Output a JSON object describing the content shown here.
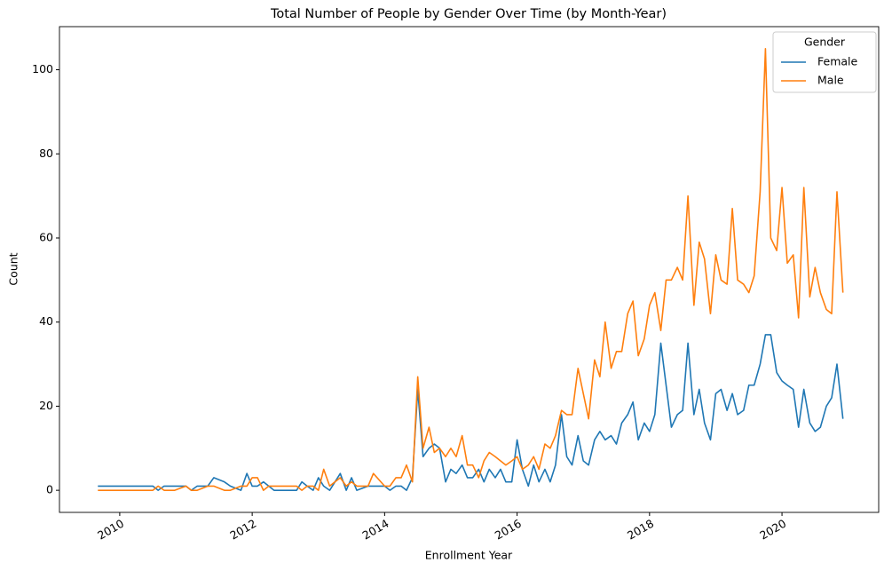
{
  "chart_data": {
    "type": "line",
    "title": "Total Number of People by Gender Over Time (by Month-Year)",
    "x_label": "Enrollment Year",
    "y_label": "Count",
    "legend_title": "Gender",
    "legend_position": "upper right",
    "x": [
      2009.67,
      2010.5,
      2010.58,
      2010.67,
      2010.83,
      2011.0,
      2011.08,
      2011.17,
      2011.33,
      2011.42,
      2011.58,
      2011.67,
      2011.83,
      2011.92,
      2012.0,
      2012.08,
      2012.17,
      2012.25,
      2012.33,
      2012.67,
      2012.75,
      2012.83,
      2012.92,
      2013.0,
      2013.08,
      2013.17,
      2013.25,
      2013.33,
      2013.42,
      2013.5,
      2013.58,
      2013.75,
      2013.83,
      2014.0,
      2014.08,
      2014.17,
      2014.25,
      2014.33,
      2014.42,
      2014.5,
      2014.58,
      2014.67,
      2014.75,
      2014.83,
      2014.92,
      2015.0,
      2015.08,
      2015.17,
      2015.25,
      2015.33,
      2015.42,
      2015.5,
      2015.58,
      2015.67,
      2015.75,
      2015.83,
      2015.92,
      2016.0,
      2016.08,
      2016.17,
      2016.25,
      2016.33,
      2016.42,
      2016.5,
      2016.58,
      2016.67,
      2016.75,
      2016.83,
      2016.92,
      2017.0,
      2017.08,
      2017.17,
      2017.25,
      2017.33,
      2017.42,
      2017.5,
      2017.58,
      2017.67,
      2017.75,
      2017.83,
      2017.92,
      2018.0,
      2018.08,
      2018.17,
      2018.25,
      2018.33,
      2018.42,
      2018.5,
      2018.58,
      2018.67,
      2018.75,
      2018.83,
      2018.92,
      2019.0,
      2019.08,
      2019.17,
      2019.25,
      2019.33,
      2019.42,
      2019.5,
      2019.58,
      2019.67,
      2019.75,
      2019.83,
      2019.92,
      2020.0,
      2020.08,
      2020.17,
      2020.25,
      2020.33,
      2020.42,
      2020.5,
      2020.58,
      2020.67,
      2020.75,
      2020.83,
      2020.92
    ],
    "series": [
      {
        "name": "Female",
        "color": "#1f77b4",
        "values": [
          1,
          1,
          0,
          1,
          1,
          1,
          0,
          1,
          1,
          3,
          2,
          1,
          0,
          4,
          1,
          1,
          2,
          1,
          0,
          0,
          2,
          1,
          0,
          3,
          1,
          0,
          2,
          4,
          0,
          3,
          0,
          1,
          1,
          1,
          0,
          1,
          1,
          0,
          3,
          24,
          8,
          10,
          11,
          10,
          2,
          5,
          4,
          6,
          3,
          3,
          5,
          2,
          5,
          3,
          5,
          2,
          2,
          12,
          5,
          1,
          6,
          2,
          5,
          2,
          6,
          18,
          8,
          6,
          13,
          7,
          6,
          12,
          14,
          12,
          13,
          11,
          16,
          18,
          21,
          12,
          16,
          14,
          18,
          35,
          25,
          15,
          18,
          19,
          35,
          18,
          24,
          16,
          12,
          23,
          24,
          19,
          23,
          18,
          19,
          25,
          25,
          30,
          37,
          37,
          28,
          26,
          25,
          24,
          15,
          24,
          16,
          14,
          15,
          20,
          22,
          30,
          17
        ]
      },
      {
        "name": "Male",
        "color": "#ff7f0e",
        "values": [
          0,
          0,
          1,
          0,
          0,
          1,
          0,
          0,
          1,
          1,
          0,
          0,
          1,
          1,
          3,
          3,
          0,
          1,
          1,
          1,
          0,
          1,
          1,
          0,
          5,
          1,
          2,
          3,
          1,
          2,
          1,
          1,
          4,
          1,
          1,
          3,
          3,
          6,
          2,
          27,
          10,
          15,
          9,
          10,
          8,
          10,
          8,
          13,
          6,
          6,
          3,
          7,
          9,
          8,
          7,
          6,
          7,
          8,
          5,
          6,
          8,
          5,
          11,
          10,
          13,
          19,
          18,
          18,
          29,
          23,
          17,
          31,
          27,
          40,
          29,
          33,
          33,
          42,
          45,
          32,
          36,
          44,
          47,
          38,
          50,
          50,
          53,
          50,
          70,
          44,
          59,
          55,
          42,
          56,
          50,
          49,
          67,
          50,
          49,
          47,
          51,
          71,
          105,
          60,
          57,
          72,
          54,
          56,
          41,
          72,
          46,
          53,
          47,
          43,
          42,
          71,
          47
        ]
      }
    ],
    "xlim": [
      2009.09,
      2021.46
    ],
    "xticks": [
      2010,
      2012,
      2014,
      2016,
      2018,
      2020
    ],
    "ylim": [
      -5.25,
      110.25
    ],
    "yticks": [
      0,
      20,
      40,
      60,
      80,
      100
    ]
  }
}
